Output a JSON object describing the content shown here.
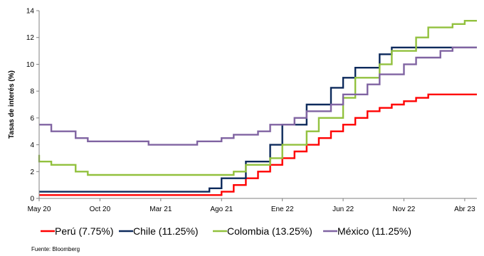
{
  "chart_data": {
    "type": "line",
    "step": true,
    "ylabel": "Tasas de interés (%)",
    "ylim": [
      0,
      14
    ],
    "yticks": [
      0,
      2,
      4,
      6,
      8,
      10,
      12,
      14
    ],
    "xlim": [
      "2020-05",
      "2023-05"
    ],
    "xticks": [
      {
        "label": "May 20",
        "date": "2020-05"
      },
      {
        "label": "Oct 20",
        "date": "2020-10"
      },
      {
        "label": "Mar 21",
        "date": "2021-03"
      },
      {
        "label": "Ago 21",
        "date": "2021-08"
      },
      {
        "label": "Ene 22",
        "date": "2022-01"
      },
      {
        "label": "Jun 22",
        "date": "2022-06"
      },
      {
        "label": "Nov 22",
        "date": "2022-11"
      },
      {
        "label": "Abr 23",
        "date": "2023-04"
      }
    ],
    "grid": false,
    "legend_position": "bottom",
    "series": [
      {
        "name": "Perú (7.75%)",
        "color": "#ff0000",
        "points": [
          [
            "2020-05",
            0.25
          ],
          [
            "2021-08",
            0.5
          ],
          [
            "2021-09",
            1.0
          ],
          [
            "2021-10",
            1.5
          ],
          [
            "2021-11",
            2.0
          ],
          [
            "2021-12",
            2.5
          ],
          [
            "2022-01",
            3.0
          ],
          [
            "2022-02",
            3.5
          ],
          [
            "2022-03",
            4.0
          ],
          [
            "2022-04",
            4.5
          ],
          [
            "2022-05",
            5.0
          ],
          [
            "2022-06",
            5.5
          ],
          [
            "2022-07",
            6.0
          ],
          [
            "2022-08",
            6.5
          ],
          [
            "2022-09",
            6.75
          ],
          [
            "2022-10",
            7.0
          ],
          [
            "2022-11",
            7.25
          ],
          [
            "2022-12",
            7.5
          ],
          [
            "2023-01",
            7.75
          ],
          [
            "2023-05",
            7.75
          ]
        ]
      },
      {
        "name": "Chile (11.25%)",
        "color": "#0d2a5c",
        "points": [
          [
            "2020-05",
            0.5
          ],
          [
            "2021-07",
            0.75
          ],
          [
            "2021-08",
            1.5
          ],
          [
            "2021-10",
            2.75
          ],
          [
            "2021-12",
            4.0
          ],
          [
            "2022-01",
            5.5
          ],
          [
            "2022-03",
            7.0
          ],
          [
            "2022-05",
            8.25
          ],
          [
            "2022-06",
            9.0
          ],
          [
            "2022-07",
            9.75
          ],
          [
            "2022-09",
            10.75
          ],
          [
            "2022-10",
            11.25
          ],
          [
            "2023-05",
            11.25
          ]
        ]
      },
      {
        "name": "Colombia (13.25%)",
        "color": "#92c13e",
        "points": [
          [
            "2020-05",
            3.25
          ],
          [
            "2020-05",
            2.75
          ],
          [
            "2020-06",
            2.5
          ],
          [
            "2020-08",
            2.0
          ],
          [
            "2020-09",
            1.75
          ],
          [
            "2021-09",
            2.0
          ],
          [
            "2021-10",
            2.5
          ],
          [
            "2021-12",
            3.0
          ],
          [
            "2022-01",
            4.0
          ],
          [
            "2022-03",
            5.0
          ],
          [
            "2022-04",
            6.0
          ],
          [
            "2022-06",
            7.5
          ],
          [
            "2022-07",
            9.0
          ],
          [
            "2022-09",
            10.0
          ],
          [
            "2022-10",
            11.0
          ],
          [
            "2022-12",
            12.0
          ],
          [
            "2023-01",
            12.75
          ],
          [
            "2023-03",
            13.0
          ],
          [
            "2023-04",
            13.25
          ],
          [
            "2023-05",
            13.25
          ]
        ]
      },
      {
        "name": "México (11.25%)",
        "color": "#8064a2",
        "points": [
          [
            "2020-05",
            5.5
          ],
          [
            "2020-06",
            5.0
          ],
          [
            "2020-08",
            4.5
          ],
          [
            "2020-09",
            4.25
          ],
          [
            "2021-02",
            4.0
          ],
          [
            "2021-06",
            4.25
          ],
          [
            "2021-08",
            4.5
          ],
          [
            "2021-09",
            4.75
          ],
          [
            "2021-11",
            5.0
          ],
          [
            "2021-12",
            5.5
          ],
          [
            "2022-02",
            6.0
          ],
          [
            "2022-03",
            6.5
          ],
          [
            "2022-05",
            7.0
          ],
          [
            "2022-06",
            7.75
          ],
          [
            "2022-08",
            8.5
          ],
          [
            "2022-09",
            9.25
          ],
          [
            "2022-11",
            10.0
          ],
          [
            "2022-12",
            10.5
          ],
          [
            "2023-02",
            11.0
          ],
          [
            "2023-03",
            11.25
          ],
          [
            "2023-05",
            11.25
          ]
        ]
      }
    ],
    "source": "Fuente: Bloomberg"
  }
}
